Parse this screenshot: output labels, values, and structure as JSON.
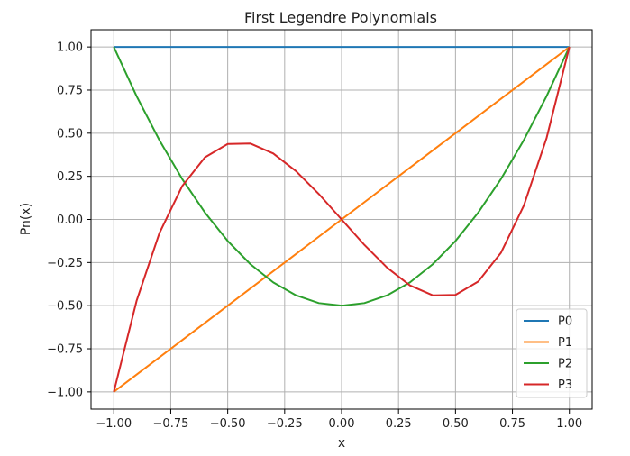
{
  "chart_data": {
    "type": "line",
    "title": "First Legendre Polynomials",
    "xlabel": "x",
    "ylabel": "Pn(x)",
    "xlim": [
      -1.1,
      1.1
    ],
    "ylim": [
      -1.1,
      1.1
    ],
    "x_ticks": [
      -1.0,
      -0.75,
      -0.5,
      -0.25,
      0.0,
      0.25,
      0.5,
      0.75,
      1.0
    ],
    "y_ticks": [
      -1.0,
      -0.75,
      -0.5,
      -0.25,
      0.0,
      0.25,
      0.5,
      0.75,
      1.0
    ],
    "x_tick_labels": [
      "−1.00",
      "−0.75",
      "−0.50",
      "−0.25",
      "0.00",
      "0.25",
      "0.50",
      "0.75",
      "1.00"
    ],
    "y_tick_labels": [
      "−1.00",
      "−0.75",
      "−0.50",
      "−0.25",
      "0.00",
      "0.25",
      "0.50",
      "0.75",
      "1.00"
    ],
    "grid": true,
    "legend_position": "bottom-right",
    "x": [
      -1.0,
      -0.9,
      -0.8,
      -0.7,
      -0.6,
      -0.5,
      -0.4,
      -0.3,
      -0.2,
      -0.1,
      0.0,
      0.1,
      0.2,
      0.3,
      0.4,
      0.5,
      0.6,
      0.7,
      0.8,
      0.9,
      1.0
    ],
    "series": [
      {
        "name": "P0",
        "color": "#1f77b4",
        "values": [
          1,
          1,
          1,
          1,
          1,
          1,
          1,
          1,
          1,
          1,
          1,
          1,
          1,
          1,
          1,
          1,
          1,
          1,
          1,
          1,
          1
        ]
      },
      {
        "name": "P1",
        "color": "#ff7f0e",
        "values": [
          -1.0,
          -0.9,
          -0.8,
          -0.7,
          -0.6,
          -0.5,
          -0.4,
          -0.3,
          -0.2,
          -0.1,
          0.0,
          0.1,
          0.2,
          0.3,
          0.4,
          0.5,
          0.6,
          0.7,
          0.8,
          0.9,
          1.0
        ]
      },
      {
        "name": "P2",
        "color": "#2ca02c",
        "values": [
          1.0,
          0.715,
          0.46,
          0.235,
          0.04,
          -0.125,
          -0.26,
          -0.365,
          -0.44,
          -0.485,
          -0.5,
          -0.485,
          -0.44,
          -0.365,
          -0.26,
          -0.125,
          0.04,
          0.235,
          0.46,
          0.715,
          1.0
        ]
      },
      {
        "name": "P3",
        "color": "#d62728",
        "values": [
          -1.0,
          -0.472,
          -0.08,
          0.1925,
          0.36,
          0.4375,
          0.44,
          0.3825,
          0.28,
          0.1475,
          0.0,
          -0.1475,
          -0.28,
          -0.3825,
          -0.44,
          -0.4375,
          -0.36,
          -0.1925,
          0.08,
          0.472,
          1.0
        ]
      }
    ]
  }
}
